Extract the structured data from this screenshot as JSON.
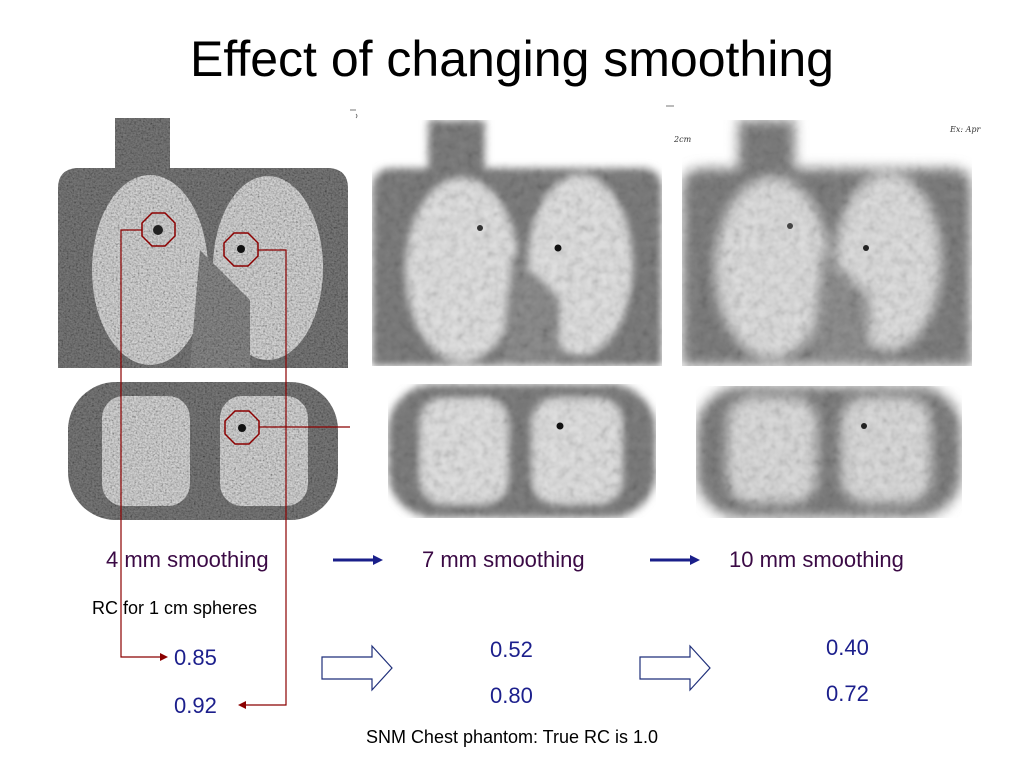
{
  "title": "Effect of changing smoothing",
  "panels": [
    {
      "id": "4mm",
      "label": "4 mm smoothing",
      "values": [
        "0.85",
        "0.92"
      ]
    },
    {
      "id": "7mm",
      "label": "7 mm smoothing",
      "values": [
        "0.52",
        "0.80"
      ]
    },
    {
      "id": "10mm",
      "label": "10 mm smoothing",
      "values": [
        "0.40",
        "0.72"
      ]
    }
  ],
  "rc_label": "RC for 1 cm spheres",
  "caption": "SNM Chest phantom: True RC is 1.0",
  "image_annotations": {
    "scale_label": "2cm",
    "corner_label": "Ex: Apr"
  },
  "colors": {
    "arrow_blue": "#1a1f8a",
    "callout_red": "#8b0000",
    "label_purple": "#3b0a45",
    "value_blue": "#1c1f8c",
    "block_arrow_outline": "#1f2f7a"
  }
}
